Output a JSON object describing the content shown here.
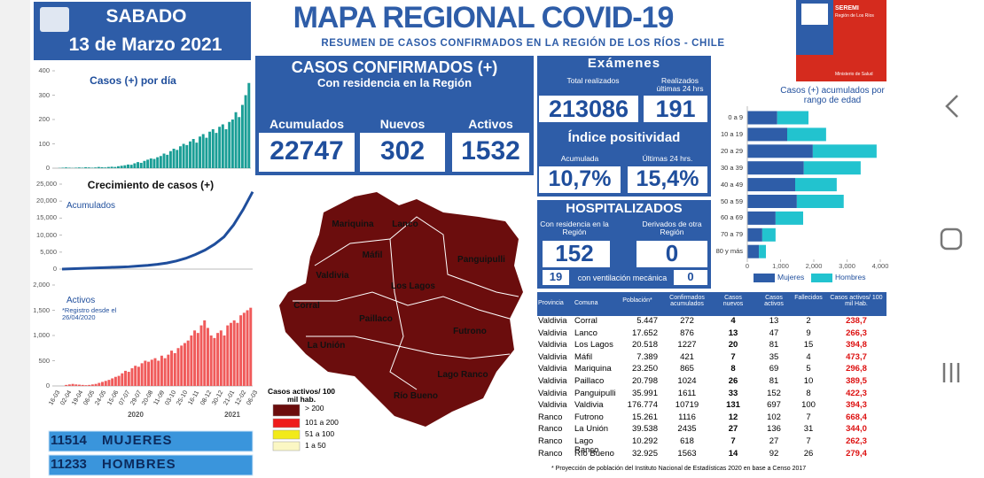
{
  "header": {
    "day": "SABADO",
    "date": "13 de Marzo 2021",
    "title": "MAPA REGIONAL COVID-19",
    "subtitle": "RESUMEN DE CASOS CONFIRMADOS EN LA REGIÓN DE LOS RÍOS - CHILE"
  },
  "logo": {
    "name": "SEREMI",
    "region": "Región de Los Ríos",
    "ministry": "Ministerio de Salud"
  },
  "confirmed": {
    "title": "CASOS CONFIRMADOS (+)",
    "subtitle": "Con residencia en la Región",
    "items": [
      {
        "label": "Acumulados",
        "value": 22747
      },
      {
        "label": "Nuevos",
        "value": 302
      },
      {
        "label": "Activos",
        "value": 1532
      }
    ]
  },
  "exams": {
    "title": "Exámenes",
    "items": [
      {
        "label": "Total realizados",
        "value": 213086
      },
      {
        "label": "Realizados últimas 24 hrs",
        "value": 191
      }
    ],
    "positivity": {
      "title": "Índice positividad",
      "items": [
        {
          "label": "Acumulada",
          "value": "10,7%"
        },
        {
          "label": "Últimas 24 hrs.",
          "value": "15,4%"
        }
      ]
    }
  },
  "hospitalized": {
    "title": "HOSPITALIZADOS",
    "items": [
      {
        "label": "Con residencia en la Región",
        "value": 152
      },
      {
        "label": "Derivados de otra Región",
        "value": 0
      }
    ],
    "ventilation": {
      "label": "con ventilación mecánica",
      "resident": 19,
      "derived": 0
    }
  },
  "charts": {
    "daily": {
      "type": "bar",
      "title": "Casos (+) por día",
      "color": "#1a9e96",
      "ylim": [
        0,
        400
      ],
      "yticks": [
        0,
        100,
        200,
        300,
        400
      ],
      "values": [
        0,
        1,
        2,
        3,
        2,
        1,
        2,
        3,
        2,
        4,
        3,
        2,
        3,
        5,
        4,
        3,
        5,
        6,
        5,
        8,
        10,
        12,
        15,
        14,
        20,
        25,
        22,
        30,
        35,
        40,
        38,
        45,
        50,
        60,
        55,
        70,
        80,
        75,
        90,
        100,
        95,
        110,
        120,
        105,
        130,
        140,
        125,
        150,
        160,
        145,
        170,
        180,
        160,
        190,
        200,
        230,
        210,
        260,
        300,
        350
      ]
    },
    "cumulative": {
      "type": "line",
      "title": "Crecimiento de casos (+)",
      "label": "Acumulados",
      "color": "#1f4e9c",
      "ylim": [
        0,
        25000
      ],
      "yticks": [
        0,
        {
          "value": 5000,
          "label": "5,000"
        },
        {
          "value": 10000,
          "label": "10,000"
        },
        {
          "value": 15000,
          "label": "15,000"
        },
        {
          "value": 20000,
          "label": "20,000"
        },
        {
          "value": 25000,
          "label": "25,000"
        }
      ],
      "values": [
        0,
        100,
        200,
        300,
        400,
        500,
        600,
        700,
        900,
        1100,
        1400,
        1800,
        2400,
        3200,
        4300,
        5600,
        7300,
        9500,
        13000,
        17500,
        22747
      ]
    },
    "active": {
      "type": "bar",
      "title": "Activos",
      "note": "*Registro desde el 26/04/2020",
      "color": "#f05a5a",
      "ylim": [
        0,
        2000
      ],
      "yticks": [
        0,
        500,
        {
          "value": 1000,
          "label": "1,000"
        },
        {
          "value": 1500,
          "label": "1,500"
        },
        {
          "value": 2000,
          "label": "2,000"
        }
      ],
      "values": [
        null,
        null,
        null,
        20,
        30,
        40,
        30,
        25,
        20,
        15,
        20,
        30,
        40,
        60,
        80,
        100,
        120,
        150,
        180,
        200,
        250,
        300,
        280,
        350,
        400,
        380,
        450,
        500,
        480,
        520,
        550,
        500,
        600,
        550,
        620,
        700,
        650,
        750,
        800,
        850,
        900,
        1000,
        1100,
        1050,
        1200,
        1300,
        1150,
        1000,
        950,
        1050,
        1100,
        1000,
        1200,
        1250,
        1300,
        1250,
        1400,
        1450,
        1500,
        1550
      ],
      "xlabels": [
        "16-03",
        "02-04",
        "19-04",
        "06-05",
        "24-05",
        "15-06",
        "07-07",
        "29-07",
        "20-08",
        "11-09",
        "03-10",
        "25-10",
        "16-11",
        "08-12",
        "30-12",
        "21-01",
        "12-02",
        "06-03"
      ],
      "years": [
        "2020",
        "2021"
      ]
    },
    "age": {
      "type": "stacked-barh",
      "title": "Casos (+) acumulados por rango de edad",
      "categories": [
        "0 a 9",
        "10 a 19",
        "20 a 29",
        "30 a 39",
        "40 a 49",
        "50 a 59",
        "60 a 69",
        "70 a 79",
        "80 y más"
      ],
      "xlim": [
        0,
        4000
      ],
      "xticks": [
        0,
        {
          "value": 1000,
          "label": "1,000"
        },
        {
          "value": 2000,
          "label": "2,000"
        },
        {
          "value": 3000,
          "label": "3,000"
        },
        {
          "value": 4000,
          "label": "4,000"
        }
      ],
      "series": [
        {
          "name": "Mujeres",
          "color": "#2e5da8",
          "values": [
            900,
            1200,
            1970,
            1700,
            1440,
            1490,
            850,
            450,
            350
          ]
        },
        {
          "name": "Hombres",
          "color": "#22c3cf",
          "values": [
            940,
            1170,
            1920,
            1710,
            1250,
            1410,
            830,
            400,
            210
          ]
        }
      ]
    }
  },
  "gender": [
    {
      "value": 11514,
      "label": "MUJERES"
    },
    {
      "value": 11233,
      "label": "HOMBRES"
    }
  ],
  "map": {
    "communes": [
      "Mariquina",
      "Lanco",
      "Máfil",
      "Panguipulli",
      "Valdivia",
      "Los Lagos",
      "Corral",
      "Paillaco",
      "Futrono",
      "La Unión",
      "Lago Ranco",
      "Río Bueno"
    ],
    "legend": {
      "title": "Casos activos/ 100 mil hab.",
      "items": [
        {
          "label": "> 200",
          "color": "#6b0d0d"
        },
        {
          "label": "101 a 200",
          "color": "#ee1c1c"
        },
        {
          "label": "51 a 100",
          "color": "#f2ea1a"
        },
        {
          "label": "1 a 50",
          "color": "#fbf7c4"
        }
      ]
    }
  },
  "table": {
    "header": [
      "Provincia",
      "Comuna",
      "Población*",
      "Confirmados acumulados",
      "Casos nuevos",
      "Casos activos",
      "Fallecidos",
      "Casos activos/ 100 mil Hab."
    ],
    "rows": [
      [
        "Valdivia",
        "Corral",
        "5.447",
        "272",
        "4",
        "13",
        "2",
        "238,7"
      ],
      [
        "Valdivia",
        "Lanco",
        "17.652",
        "876",
        "13",
        "47",
        "9",
        "266,3"
      ],
      [
        "Valdivia",
        "Los Lagos",
        "20.518",
        "1227",
        "20",
        "81",
        "15",
        "394,8"
      ],
      [
        "Valdivia",
        "Máfil",
        "7.389",
        "421",
        "7",
        "35",
        "4",
        "473,7"
      ],
      [
        "Valdivia",
        "Mariquina",
        "23.250",
        "865",
        "8",
        "69",
        "5",
        "296,8"
      ],
      [
        "Valdivia",
        "Paillaco",
        "20.798",
        "1024",
        "26",
        "81",
        "10",
        "389,5"
      ],
      [
        "Valdivia",
        "Panguipulli",
        "35.991",
        "1611",
        "33",
        "152",
        "8",
        "422,3"
      ],
      [
        "Valdivia",
        "Valdivia",
        "176.774",
        "10719",
        "131",
        "697",
        "100",
        "394,3"
      ],
      [
        "Ranco",
        "Futrono",
        "15.261",
        "1116",
        "12",
        "102",
        "7",
        "668,4"
      ],
      [
        "Ranco",
        "La Unión",
        "39.538",
        "2435",
        "27",
        "136",
        "31",
        "344,0"
      ],
      [
        "Ranco",
        "Lago Ranco",
        "10.292",
        "618",
        "7",
        "27",
        "7",
        "262,3"
      ],
      [
        "Ranco",
        "Río Bueno",
        "32.925",
        "1563",
        "14",
        "92",
        "26",
        "279,4"
      ]
    ],
    "footnote": "* Proyección de población del Instituto Nacional de Estadísticas 2020 en base a Censo 2017"
  }
}
